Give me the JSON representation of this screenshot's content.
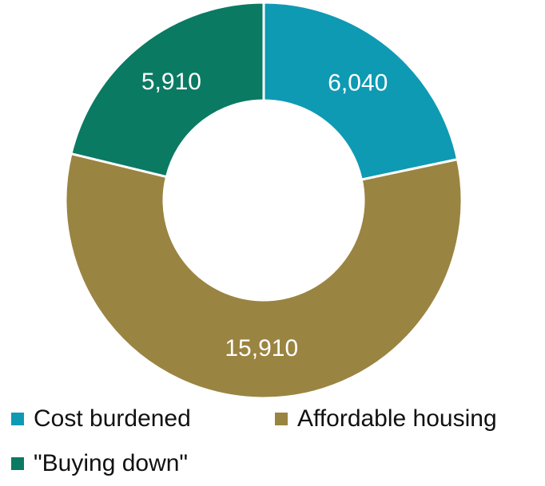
{
  "chart_data": {
    "type": "pie",
    "donut": true,
    "title": "",
    "legend_position": "bottom",
    "slices": [
      {
        "name": "Cost burdened",
        "value": 6040,
        "label": "6,040",
        "color": "#0e9ab3"
      },
      {
        "name": "Affordable housing",
        "value": 15910,
        "label": "15,910",
        "color": "#9a8441"
      },
      {
        "name": "\"Buying down\"",
        "value": 5910,
        "label": "5,910",
        "color": "#0b7a63"
      }
    ]
  }
}
